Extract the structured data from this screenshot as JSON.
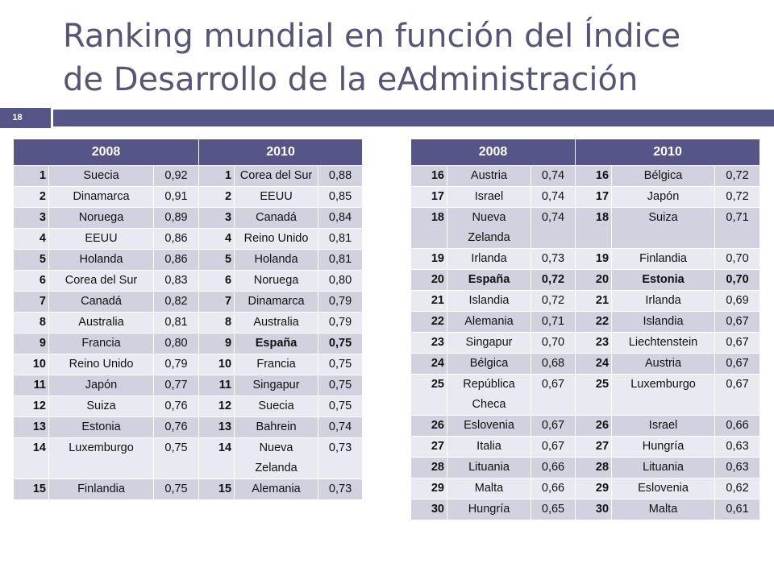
{
  "title": {
    "line1": "Ranking mundial en función del Índice",
    "line2": "de Desarrollo de la eAdministración"
  },
  "slide_number": "18",
  "left_table": {
    "headers": [
      "2008",
      "2010"
    ],
    "rows": [
      {
        "r1": "1",
        "c1": "Suecia",
        "v1": "0,92",
        "r2": "1",
        "c2": "Corea del Sur",
        "v2": "0,88"
      },
      {
        "r1": "2",
        "c1": "Dinamarca",
        "v1": "0,91",
        "r2": "2",
        "c2": "EEUU",
        "v2": "0,85"
      },
      {
        "r1": "3",
        "c1": "Noruega",
        "v1": "0,89",
        "r2": "3",
        "c2": "Canadá",
        "v2": "0,84"
      },
      {
        "r1": "4",
        "c1": "EEUU",
        "v1": "0,86",
        "r2": "4",
        "c2": "Reino Unido",
        "v2": "0,81"
      },
      {
        "r1": "5",
        "c1": "Holanda",
        "v1": "0,86",
        "r2": "5",
        "c2": "Holanda",
        "v2": "0,81"
      },
      {
        "r1": "6",
        "c1": "Corea del Sur",
        "v1": "0,83",
        "r2": "6",
        "c2": "Noruega",
        "v2": "0,80"
      },
      {
        "r1": "7",
        "c1": "Canadá",
        "v1": "0,82",
        "r2": "7",
        "c2": "Dinamarca",
        "v2": "0,79"
      },
      {
        "r1": "8",
        "c1": "Australia",
        "v1": "0,81",
        "r2": "8",
        "c2": "Australia",
        "v2": "0,79"
      },
      {
        "r1": "9",
        "c1": "Francia",
        "v1": "0,80",
        "r2": "9",
        "c2": "España",
        "v2": "0,75"
      },
      {
        "r1": "10",
        "c1": "Reino Unido",
        "v1": "0,79",
        "r2": "10",
        "c2": "Francia",
        "v2": "0,75"
      },
      {
        "r1": "11",
        "c1": "Japón",
        "v1": "0,77",
        "r2": "11",
        "c2": "Singapur",
        "v2": "0,75"
      },
      {
        "r1": "12",
        "c1": "Suiza",
        "v1": "0,76",
        "r2": "12",
        "c2": "Suecia",
        "v2": "0,75"
      },
      {
        "r1": "13",
        "c1": "Estonia",
        "v1": "0,76",
        "r2": "13",
        "c2": "Bahrein",
        "v2": "0,74"
      },
      {
        "r1": "14",
        "c1": "Luxemburgo",
        "v1": "0,75",
        "r2": "14",
        "c2": "Nueva Zelanda",
        "v2": "0,73"
      },
      {
        "r1": "15",
        "c1": "Finlandia",
        "v1": "0,75",
        "r2": "15",
        "c2": "Alemania",
        "v2": "0,73"
      }
    ]
  },
  "right_table": {
    "headers": [
      "2008",
      "2010"
    ],
    "rows": [
      {
        "r1": "16",
        "c1": "Austria",
        "v1": "0,74",
        "r2": "16",
        "c2": "Bélgica",
        "v2": "0,72"
      },
      {
        "r1": "17",
        "c1": "Israel",
        "v1": "0,74",
        "r2": "17",
        "c2": "Japón",
        "v2": "0,72"
      },
      {
        "r1": "18",
        "c1": "Nueva Zelanda",
        "v1": "0,74",
        "r2": "18",
        "c2": "Suiza",
        "v2": "0,71"
      },
      {
        "r1": "19",
        "c1": "Irlanda",
        "v1": "0,73",
        "r2": "19",
        "c2": "Finlandia",
        "v2": "0,70"
      },
      {
        "r1": "20",
        "c1": "España",
        "v1": "0,72",
        "r2": "20",
        "c2": "Estonia",
        "v2": "0,70"
      },
      {
        "r1": "21",
        "c1": "Islandia",
        "v1": "0,72",
        "r2": "21",
        "c2": "Irlanda",
        "v2": "0,69"
      },
      {
        "r1": "22",
        "c1": "Alemania",
        "v1": "0,71",
        "r2": "22",
        "c2": "Islandia",
        "v2": "0,67"
      },
      {
        "r1": "23",
        "c1": "Singapur",
        "v1": "0,70",
        "r2": "23",
        "c2": "Liechtenstein",
        "v2": "0,67"
      },
      {
        "r1": "24",
        "c1": "Bélgica",
        "v1": "0,68",
        "r2": "24",
        "c2": "Austria",
        "v2": "0,67"
      },
      {
        "r1": "25",
        "c1": "República Checa",
        "v1": "0,67",
        "r2": "25",
        "c2": "Luxemburgo",
        "v2": "0,67"
      },
      {
        "r1": "26",
        "c1": "Eslovenia",
        "v1": "0,67",
        "r2": "26",
        "c2": "Israel",
        "v2": "0,66"
      },
      {
        "r1": "27",
        "c1": "Italia",
        "v1": "0,67",
        "r2": "27",
        "c2": "Hungría",
        "v2": "0,63"
      },
      {
        "r1": "28",
        "c1": "Lituania",
        "v1": "0,66",
        "r2": "28",
        "c2": "Lituania",
        "v2": "0,63"
      },
      {
        "r1": "29",
        "c1": "Malta",
        "v1": "0,66",
        "r2": "29",
        "c2": "Eslovenia",
        "v2": "0,62"
      },
      {
        "r1": "30",
        "c1": "Hungría",
        "v1": "0,65",
        "r2": "30",
        "c2": "Malta",
        "v2": "0,61"
      }
    ]
  }
}
